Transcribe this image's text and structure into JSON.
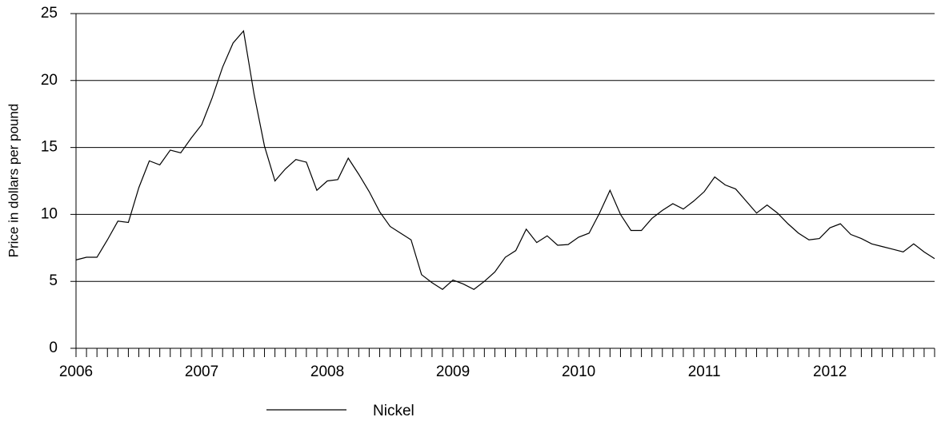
{
  "chart_data": {
    "type": "line",
    "y_label": "Price in dollars per pound",
    "categories": [
      "2006",
      null,
      null,
      null,
      null,
      null,
      null,
      null,
      null,
      null,
      null,
      null,
      "2007",
      null,
      null,
      null,
      null,
      null,
      null,
      null,
      null,
      null,
      null,
      null,
      "2008",
      null,
      null,
      null,
      null,
      null,
      null,
      null,
      null,
      null,
      null,
      null,
      "2009",
      null,
      null,
      null,
      null,
      null,
      null,
      null,
      null,
      null,
      null,
      null,
      "2010",
      null,
      null,
      null,
      null,
      null,
      null,
      null,
      null,
      null,
      null,
      null,
      "2011",
      null,
      null,
      null,
      null,
      null,
      null,
      null,
      null,
      null,
      null,
      null,
      "2012",
      null,
      null,
      null,
      null,
      null,
      null,
      null,
      null,
      null,
      null
    ],
    "series": [
      {
        "name": "Nickel",
        "color": "#000000",
        "values": [
          6.6,
          6.8,
          6.8,
          8.1,
          9.5,
          9.4,
          12.0,
          14.0,
          13.7,
          14.8,
          14.6,
          15.7,
          16.7,
          18.7,
          21.0,
          22.8,
          23.7,
          19.0,
          15.1,
          12.5,
          13.4,
          14.1,
          13.9,
          11.8,
          12.5,
          12.6,
          14.2,
          13.0,
          11.7,
          10.2,
          9.1,
          8.6,
          8.1,
          5.5,
          4.9,
          4.4,
          5.1,
          4.8,
          4.4,
          5.0,
          5.7,
          6.8,
          7.3,
          8.9,
          7.9,
          8.4,
          7.7,
          7.75,
          8.3,
          8.6,
          10.1,
          11.8,
          10.0,
          8.8,
          8.8,
          9.7,
          10.3,
          10.8,
          10.4,
          11.0,
          11.7,
          12.8,
          12.2,
          11.9,
          11.0,
          10.1,
          10.7,
          10.1,
          9.3,
          8.6,
          8.1,
          8.2,
          9.0,
          9.3,
          8.5,
          8.2,
          7.8,
          7.6,
          7.4,
          7.2,
          7.8,
          7.2,
          6.7
        ]
      }
    ],
    "ylim": [
      0,
      25
    ],
    "yticks": [
      0,
      5,
      10,
      15,
      20,
      25
    ],
    "grid": true
  }
}
